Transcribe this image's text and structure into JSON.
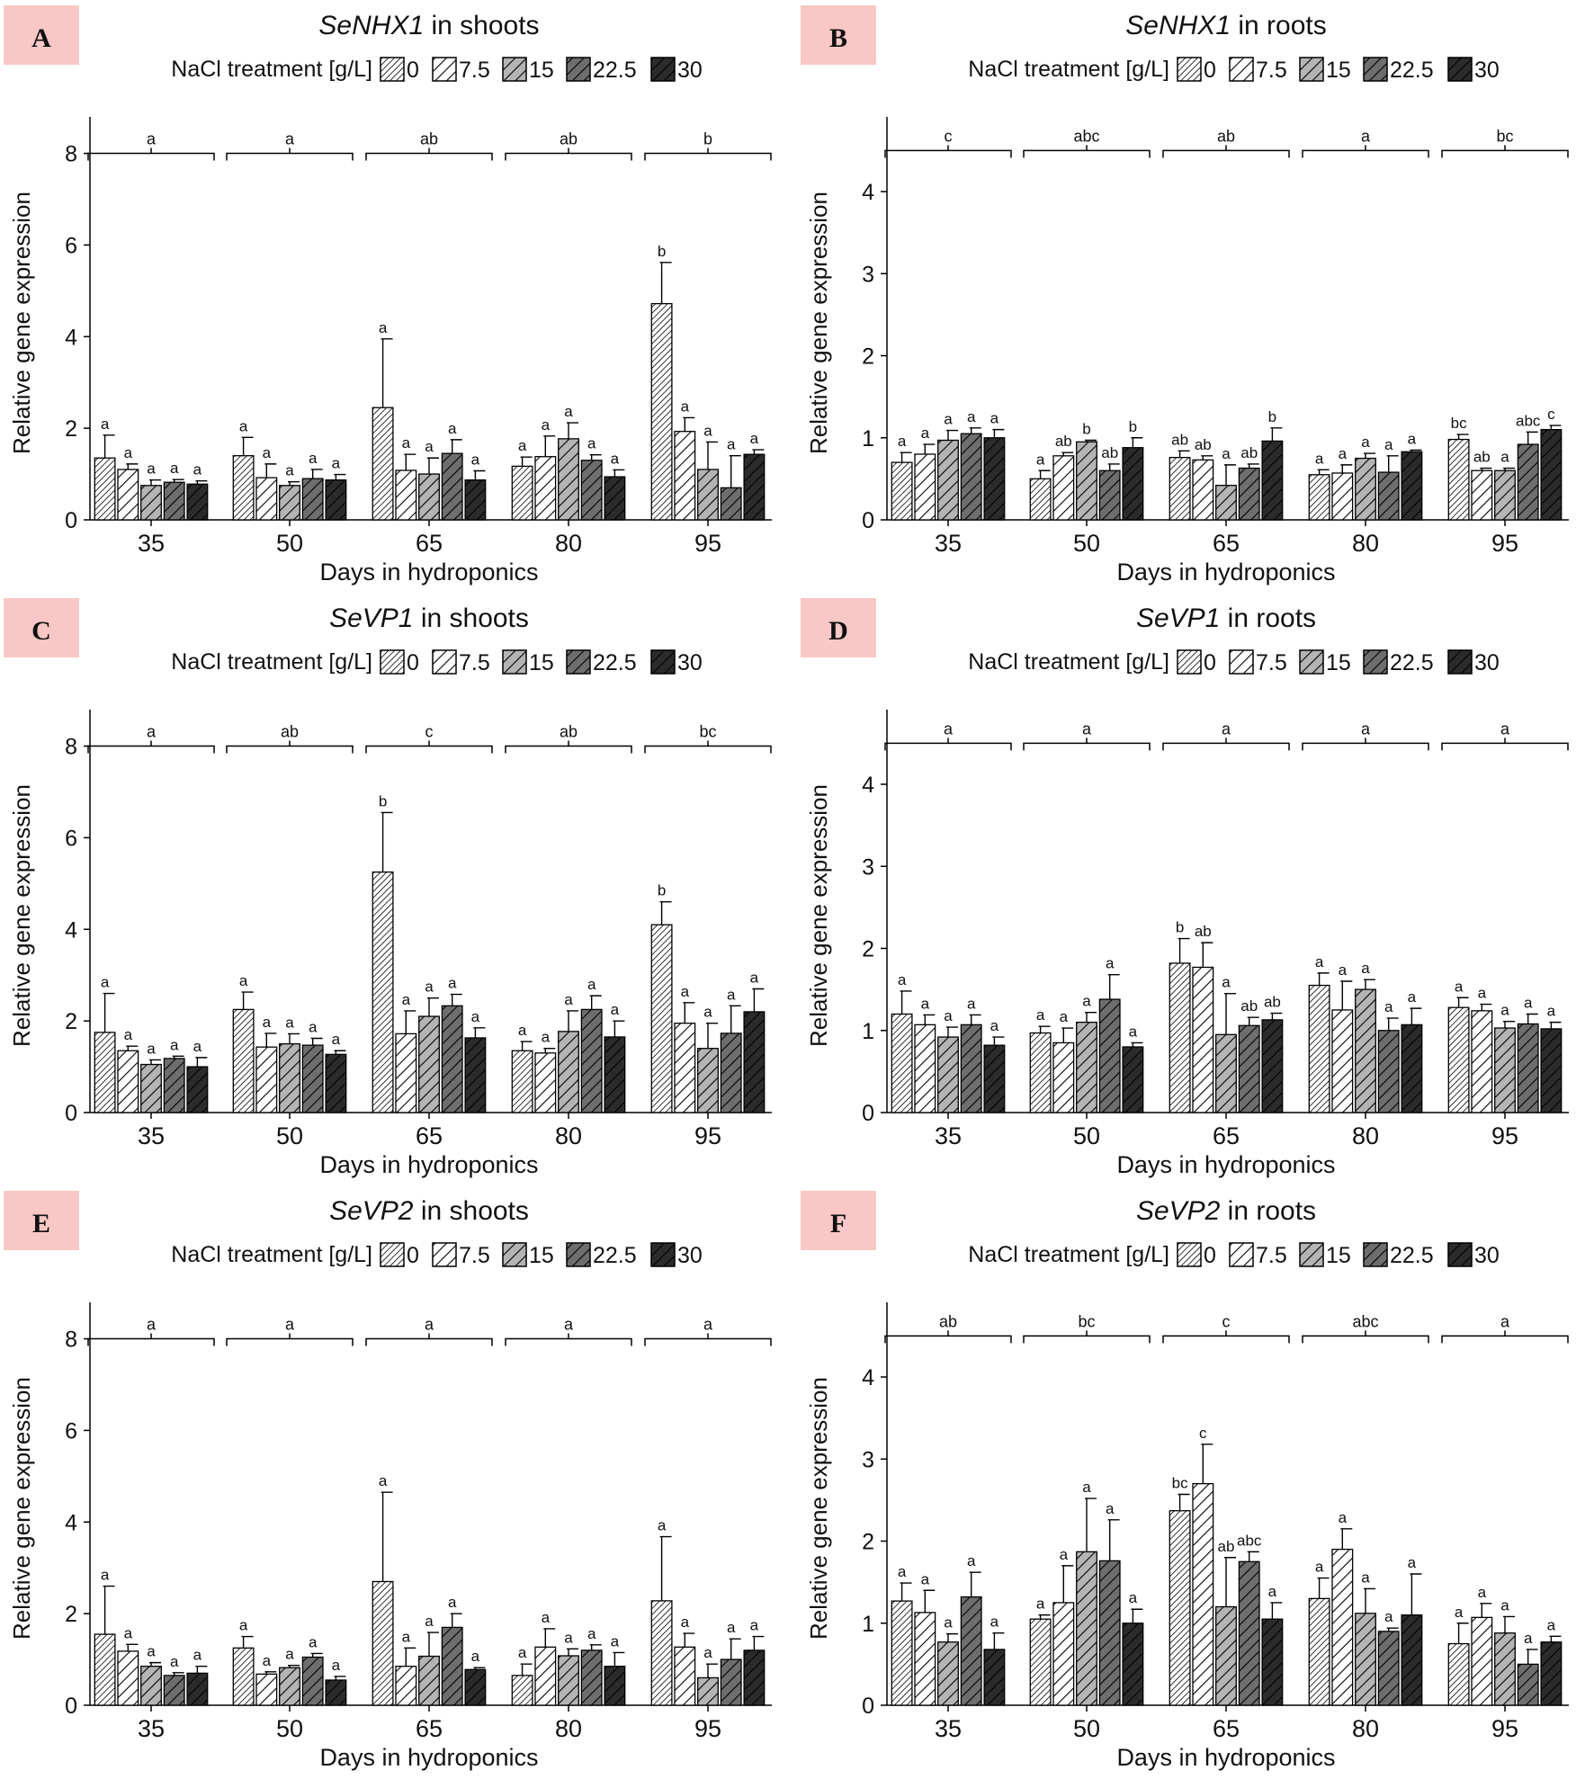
{
  "figure": {
    "legend_label": "NaCl treatment [g/L]",
    "legend_levels": [
      "0",
      "7.5",
      "15",
      "22.5",
      "30"
    ],
    "series_colors": [
      "#ffffff",
      "#ffffff",
      "#b4b4b4",
      "#6e6e6e",
      "#2b2b2b"
    ],
    "letter_box_color": "#f9c8c6"
  },
  "chart_data": [
    {
      "panel": "A",
      "type": "bar",
      "title_gene": "SeNHX1",
      "title_rest": " in shoots",
      "xlabel": "Days in hydroponics",
      "ylabel": "Relative gene expression",
      "ylim": [
        0,
        8.6
      ],
      "yticks": [
        0,
        2,
        4,
        6,
        8
      ],
      "bracket_y": 8.0,
      "categories": [
        "35",
        "50",
        "65",
        "80",
        "95"
      ],
      "group_letters": [
        "a",
        "a",
        "ab",
        "ab",
        "b"
      ],
      "values": [
        [
          1.35,
          1.1,
          0.75,
          0.82,
          0.78
        ],
        [
          1.4,
          0.92,
          0.75,
          0.9,
          0.87
        ],
        [
          2.45,
          1.08,
          1.0,
          1.45,
          0.87
        ],
        [
          1.17,
          1.38,
          1.77,
          1.3,
          0.94
        ],
        [
          4.72,
          1.93,
          1.1,
          0.7,
          1.43
        ]
      ],
      "errors": [
        [
          0.5,
          0.12,
          0.12,
          0.06,
          0.07
        ],
        [
          0.4,
          0.3,
          0.08,
          0.2,
          0.12
        ],
        [
          1.5,
          0.35,
          0.35,
          0.3,
          0.2
        ],
        [
          0.2,
          0.45,
          0.35,
          0.12,
          0.15
        ],
        [
          0.9,
          0.3,
          0.6,
          0.7,
          0.1
        ]
      ],
      "labels": [
        [
          "a",
          "a",
          "a",
          "a",
          "a"
        ],
        [
          "a",
          "a",
          "a",
          "a",
          "a"
        ],
        [
          "a",
          "a",
          "a",
          "a",
          "a"
        ],
        [
          "a",
          "a",
          "a",
          "a",
          "a"
        ],
        [
          "b",
          "a",
          "a",
          "a",
          "a"
        ]
      ]
    },
    {
      "panel": "B",
      "type": "bar",
      "title_gene": "SeNHX1",
      "title_rest": " in roots",
      "xlabel": "Days in hydroponics",
      "ylabel": "Relative gene expression",
      "ylim": [
        0,
        4.8
      ],
      "yticks": [
        0,
        1,
        2,
        3,
        4
      ],
      "bracket_y": 4.5,
      "categories": [
        "35",
        "50",
        "65",
        "80",
        "95"
      ],
      "group_letters": [
        "c",
        "abc",
        "ab",
        "a",
        "bc"
      ],
      "values": [
        [
          0.7,
          0.8,
          0.97,
          1.05,
          1.0
        ],
        [
          0.5,
          0.78,
          0.95,
          0.6,
          0.88
        ],
        [
          0.76,
          0.73,
          0.42,
          0.63,
          0.96
        ],
        [
          0.55,
          0.57,
          0.75,
          0.58,
          0.83
        ],
        [
          0.98,
          0.6,
          0.6,
          0.92,
          1.1
        ]
      ],
      "errors": [
        [
          0.12,
          0.12,
          0.12,
          0.07,
          0.1
        ],
        [
          0.1,
          0.04,
          0.02,
          0.08,
          0.12
        ],
        [
          0.08,
          0.05,
          0.25,
          0.05,
          0.16
        ],
        [
          0.06,
          0.1,
          0.06,
          0.2,
          0.02
        ],
        [
          0.06,
          0.03,
          0.03,
          0.15,
          0.05
        ]
      ],
      "labels": [
        [
          "a",
          "a",
          "a",
          "a",
          "a"
        ],
        [
          "a",
          "ab",
          "b",
          "ab",
          "b"
        ],
        [
          "ab",
          "ab",
          "a",
          "ab",
          "b"
        ],
        [
          "a",
          "a",
          "a",
          "a",
          "a"
        ],
        [
          "bc",
          "ab",
          "a",
          "abc",
          "c"
        ]
      ]
    },
    {
      "panel": "C",
      "type": "bar",
      "title_gene": "SeVP1",
      "title_rest": " in shoots",
      "xlabel": "Days in hydroponics",
      "ylabel": "Relative gene expression",
      "ylim": [
        0,
        8.6
      ],
      "yticks": [
        0,
        2,
        4,
        6,
        8
      ],
      "bracket_y": 8.0,
      "categories": [
        "35",
        "50",
        "65",
        "80",
        "95"
      ],
      "group_letters": [
        "a",
        "ab",
        "c",
        "ab",
        "bc"
      ],
      "values": [
        [
          1.75,
          1.35,
          1.05,
          1.18,
          1.0
        ],
        [
          2.25,
          1.43,
          1.5,
          1.47,
          1.27
        ],
        [
          5.25,
          1.72,
          2.1,
          2.33,
          1.63
        ],
        [
          1.35,
          1.3,
          1.77,
          2.25,
          1.65
        ],
        [
          4.1,
          1.95,
          1.4,
          1.73,
          2.2
        ]
      ],
      "errors": [
        [
          0.85,
          0.1,
          0.1,
          0.05,
          0.2
        ],
        [
          0.38,
          0.3,
          0.22,
          0.15,
          0.08
        ],
        [
          1.3,
          0.5,
          0.4,
          0.25,
          0.22
        ],
        [
          0.2,
          0.1,
          0.45,
          0.3,
          0.35
        ],
        [
          0.5,
          0.45,
          0.55,
          0.6,
          0.5
        ]
      ],
      "labels": [
        [
          "a",
          "a",
          "a",
          "a",
          "a"
        ],
        [
          "a",
          "a",
          "a",
          "a",
          "a"
        ],
        [
          "b",
          "a",
          "a",
          "a",
          "a"
        ],
        [
          "a",
          "a",
          "a",
          "a",
          "a"
        ],
        [
          "b",
          "a",
          "a",
          "a",
          "a"
        ]
      ]
    },
    {
      "panel": "D",
      "type": "bar",
      "title_gene": "SeVP1",
      "title_rest": " in roots",
      "xlabel": "Days in hydroponics",
      "ylabel": "Relative gene expression",
      "ylim": [
        0,
        4.8
      ],
      "yticks": [
        0,
        1,
        2,
        3,
        4
      ],
      "bracket_y": 4.5,
      "categories": [
        "35",
        "50",
        "65",
        "80",
        "95"
      ],
      "group_letters": [
        "a",
        "a",
        "a",
        "a",
        "a"
      ],
      "values": [
        [
          1.2,
          1.07,
          0.92,
          1.07,
          0.82
        ],
        [
          0.97,
          0.85,
          1.1,
          1.38,
          0.8
        ],
        [
          1.82,
          1.77,
          0.95,
          1.06,
          1.13
        ],
        [
          1.55,
          1.25,
          1.5,
          1.0,
          1.07
        ],
        [
          1.28,
          1.24,
          1.03,
          1.08,
          1.02
        ]
      ],
      "errors": [
        [
          0.28,
          0.12,
          0.12,
          0.12,
          0.1
        ],
        [
          0.08,
          0.18,
          0.12,
          0.3,
          0.05
        ],
        [
          0.3,
          0.3,
          0.5,
          0.1,
          0.08
        ],
        [
          0.15,
          0.35,
          0.12,
          0.15,
          0.2
        ],
        [
          0.12,
          0.08,
          0.08,
          0.12,
          0.08
        ]
      ],
      "labels": [
        [
          "a",
          "a",
          "a",
          "a",
          "a"
        ],
        [
          "a",
          "a",
          "a",
          "a",
          "a"
        ],
        [
          "b",
          "ab",
          "a",
          "ab",
          "ab"
        ],
        [
          "a",
          "a",
          "a",
          "a",
          "a"
        ],
        [
          "a",
          "a",
          "a",
          "a",
          "a"
        ]
      ]
    },
    {
      "panel": "E",
      "type": "bar",
      "title_gene": "SeVP2",
      "title_rest": " in shoots",
      "xlabel": "Days in hydroponics",
      "ylabel": "Relative gene expression",
      "ylim": [
        0,
        8.6
      ],
      "yticks": [
        0,
        2,
        4,
        6,
        8
      ],
      "bracket_y": 8.0,
      "categories": [
        "35",
        "50",
        "65",
        "80",
        "95"
      ],
      "group_letters": [
        "a",
        "a",
        "a",
        "a",
        "a"
      ],
      "values": [
        [
          1.55,
          1.18,
          0.85,
          0.65,
          0.7
        ],
        [
          1.25,
          0.68,
          0.82,
          1.05,
          0.55
        ],
        [
          2.7,
          0.85,
          1.07,
          1.7,
          0.78
        ],
        [
          0.65,
          1.27,
          1.08,
          1.2,
          0.85
        ],
        [
          2.28,
          1.27,
          0.6,
          1.0,
          1.2
        ]
      ],
      "errors": [
        [
          1.05,
          0.15,
          0.08,
          0.06,
          0.15
        ],
        [
          0.25,
          0.05,
          0.05,
          0.08,
          0.08
        ],
        [
          1.95,
          0.4,
          0.52,
          0.3,
          0.04
        ],
        [
          0.25,
          0.4,
          0.15,
          0.12,
          0.3
        ],
        [
          1.4,
          0.3,
          0.3,
          0.45,
          0.3
        ]
      ],
      "labels": [
        [
          "a",
          "a",
          "a",
          "a",
          "a"
        ],
        [
          "a",
          "a",
          "a",
          "a",
          "a"
        ],
        [
          "a",
          "a",
          "a",
          "a",
          "a"
        ],
        [
          "a",
          "a",
          "a",
          "a",
          "a"
        ],
        [
          "a",
          "a",
          "a",
          "a",
          "a"
        ]
      ]
    },
    {
      "panel": "F",
      "type": "bar",
      "title_gene": "SeVP2",
      "title_rest": " in roots",
      "xlabel": "Days in hydroponics",
      "ylabel": "Relative gene expression",
      "ylim": [
        0,
        4.8
      ],
      "yticks": [
        0,
        1,
        2,
        3,
        4
      ],
      "bracket_y": 4.5,
      "categories": [
        "35",
        "50",
        "65",
        "80",
        "95"
      ],
      "group_letters": [
        "ab",
        "bc",
        "c",
        "abc",
        "a"
      ],
      "values": [
        [
          1.27,
          1.13,
          0.77,
          1.32,
          0.68
        ],
        [
          1.05,
          1.25,
          1.87,
          1.76,
          1.0
        ],
        [
          2.37,
          2.7,
          1.2,
          1.75,
          1.05
        ],
        [
          1.3,
          1.9,
          1.12,
          0.9,
          1.1
        ],
        [
          0.75,
          1.07,
          0.88,
          0.5,
          0.77
        ]
      ],
      "errors": [
        [
          0.22,
          0.27,
          0.1,
          0.3,
          0.2
        ],
        [
          0.05,
          0.45,
          0.65,
          0.5,
          0.17
        ],
        [
          0.2,
          0.48,
          0.6,
          0.12,
          0.2
        ],
        [
          0.25,
          0.25,
          0.3,
          0.04,
          0.5
        ],
        [
          0.25,
          0.17,
          0.2,
          0.18,
          0.07
        ]
      ],
      "labels": [
        [
          "a",
          "a",
          "a",
          "a",
          "a"
        ],
        [
          "a",
          "a",
          "a",
          "a",
          "a"
        ],
        [
          "bc",
          "c",
          "ab",
          "abc",
          "a"
        ],
        [
          "a",
          "a",
          "a",
          "a",
          "a"
        ],
        [
          "a",
          "a",
          "a",
          "a",
          "a"
        ]
      ]
    }
  ]
}
